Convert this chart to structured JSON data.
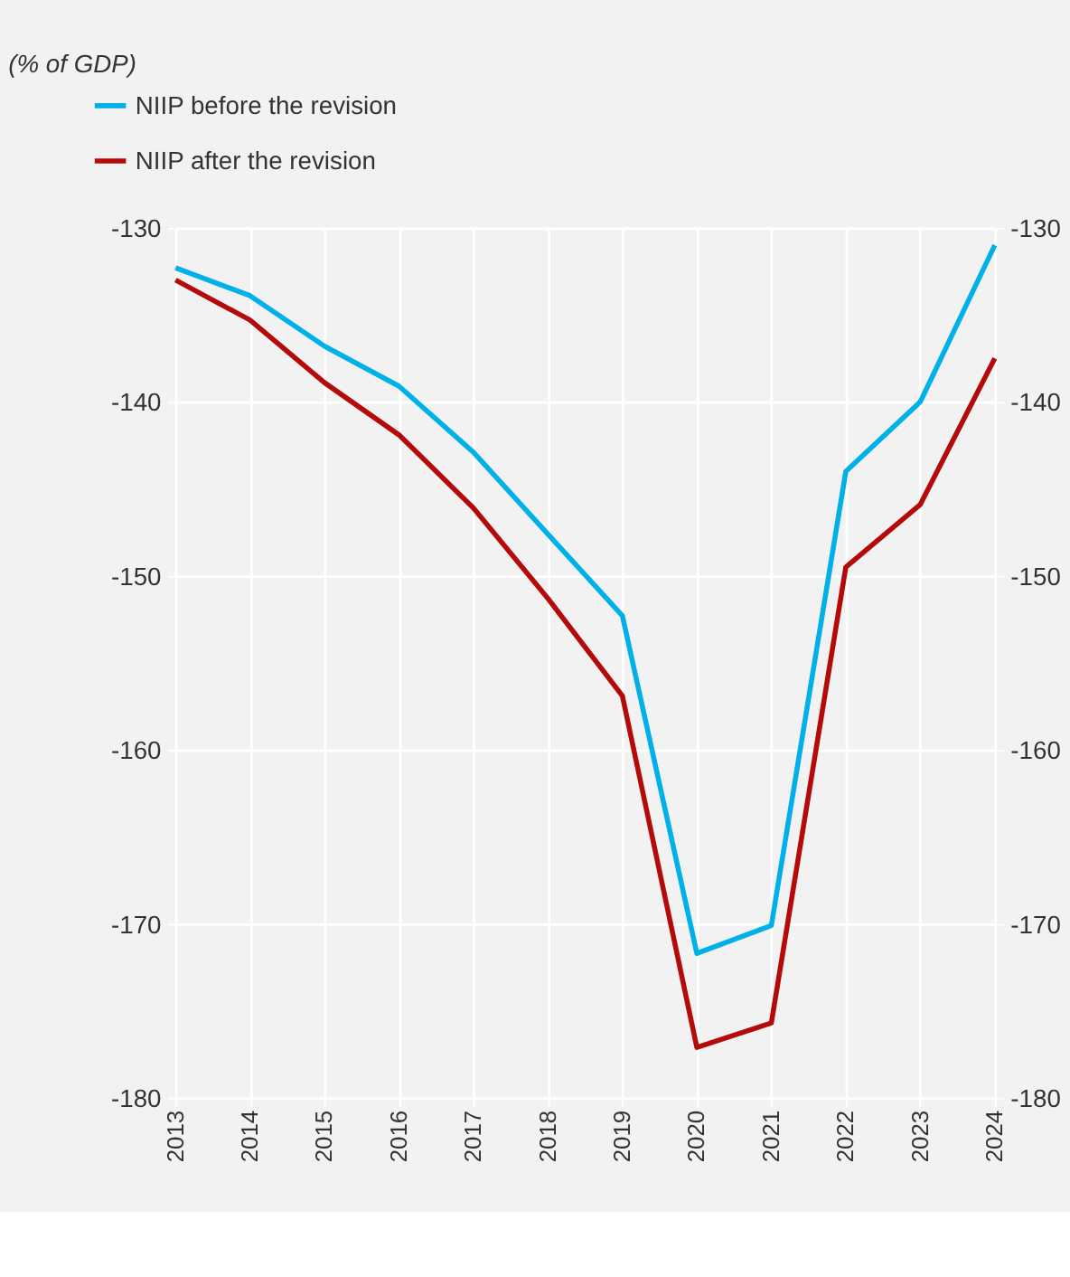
{
  "chart_data": {
    "type": "line",
    "subtitle": "(% of GDP)",
    "categories": [
      "2013",
      "2014",
      "2015",
      "2016",
      "2017",
      "2018",
      "2019",
      "2020",
      "2021",
      "2022",
      "2023",
      "2024"
    ],
    "series": [
      {
        "name": "NIIP before the revision",
        "color": "#00b0e8",
        "values": [
          -132.3,
          -133.9,
          -136.8,
          -139.1,
          -142.9,
          -147.6,
          -152.3,
          -171.7,
          -170.1,
          -144.0,
          -140.0,
          -131.0
        ]
      },
      {
        "name": "NIIP after the revision",
        "color": "#b40a0a",
        "values": [
          -133.0,
          -135.3,
          -138.9,
          -141.9,
          -146.1,
          -151.3,
          -156.9,
          -177.1,
          -175.7,
          -149.5,
          -145.9,
          -137.5
        ]
      }
    ],
    "ylim": [
      -180,
      -130
    ],
    "yticks": [
      -180,
      -170,
      -160,
      -150,
      -140,
      -130
    ],
    "y2lim": [
      -180,
      -130
    ],
    "y2ticks": [
      -180,
      -170,
      -160,
      -150,
      -140,
      -130
    ],
    "grid": true,
    "legend": "top left",
    "marker": "none",
    "line_style": "solid"
  }
}
